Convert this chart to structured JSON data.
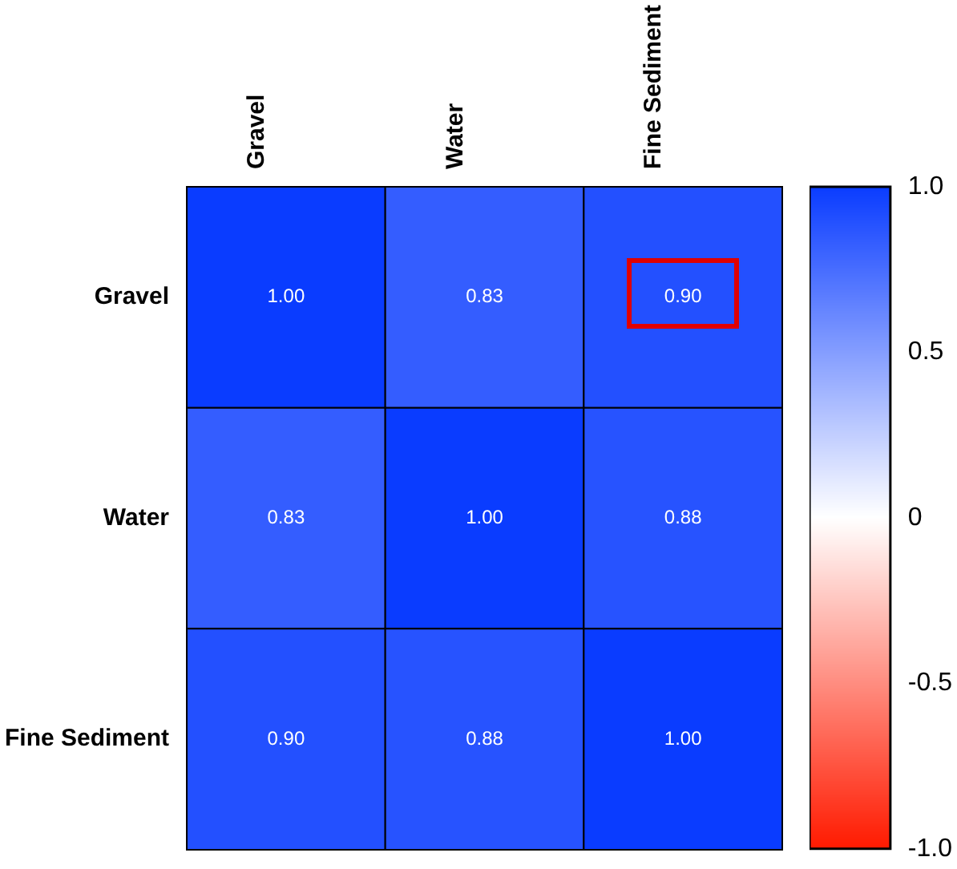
{
  "chart_data": {
    "type": "heatmap",
    "categories": [
      "Gravel",
      "Water",
      "Fine Sediment"
    ],
    "y_categories": [
      "Gravel",
      "Water",
      "Fine Sediment"
    ],
    "cells": [
      [
        1.0,
        0.83,
        0.9
      ],
      [
        0.83,
        1.0,
        0.88
      ],
      [
        0.9,
        0.88,
        1.0
      ]
    ],
    "cell_labels": [
      [
        "1.00",
        "0.83",
        "0.90"
      ],
      [
        "0.83",
        "1.00",
        "0.88"
      ],
      [
        "0.90",
        "0.88",
        "1.00"
      ]
    ],
    "colors": [
      "#ff1a00",
      "#ffffff",
      "#0a3cff"
    ],
    "clim": [
      -1,
      1
    ],
    "cticks": [
      {
        "value": 1,
        "label": "1.0"
      },
      {
        "value": 0.5,
        "label": "0.5"
      },
      {
        "value": 0,
        "label": "0"
      },
      {
        "value": -0.5,
        "label": "-0.5"
      },
      {
        "value": -1,
        "label": "-1.0"
      }
    ]
  }
}
